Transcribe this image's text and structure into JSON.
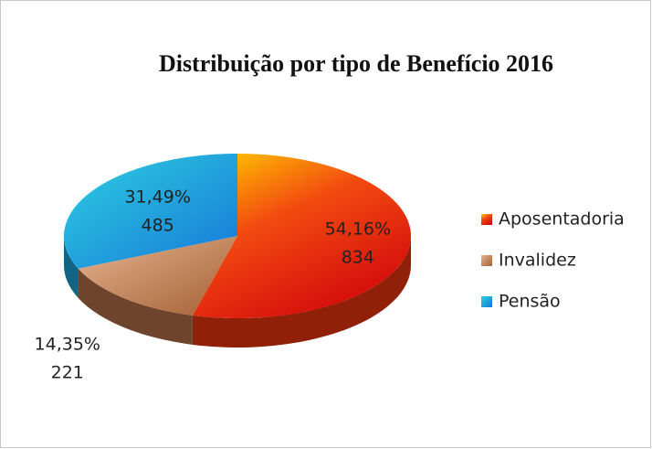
{
  "chart_data": {
    "type": "pie3d",
    "title": "Distribuição por tipo de Benefício 2016",
    "categories": [
      "Aposentadoria",
      "Invalidez",
      "Pensão"
    ],
    "values": [
      54.16,
      14.35,
      31.49
    ],
    "value_labels": [
      "54,16%",
      "14,35%",
      "31,49%"
    ],
    "counts": [
      834,
      221,
      485
    ],
    "colors": [
      "#f2360f",
      "#b8734a",
      "#1ba6dc"
    ],
    "legend": "right"
  }
}
